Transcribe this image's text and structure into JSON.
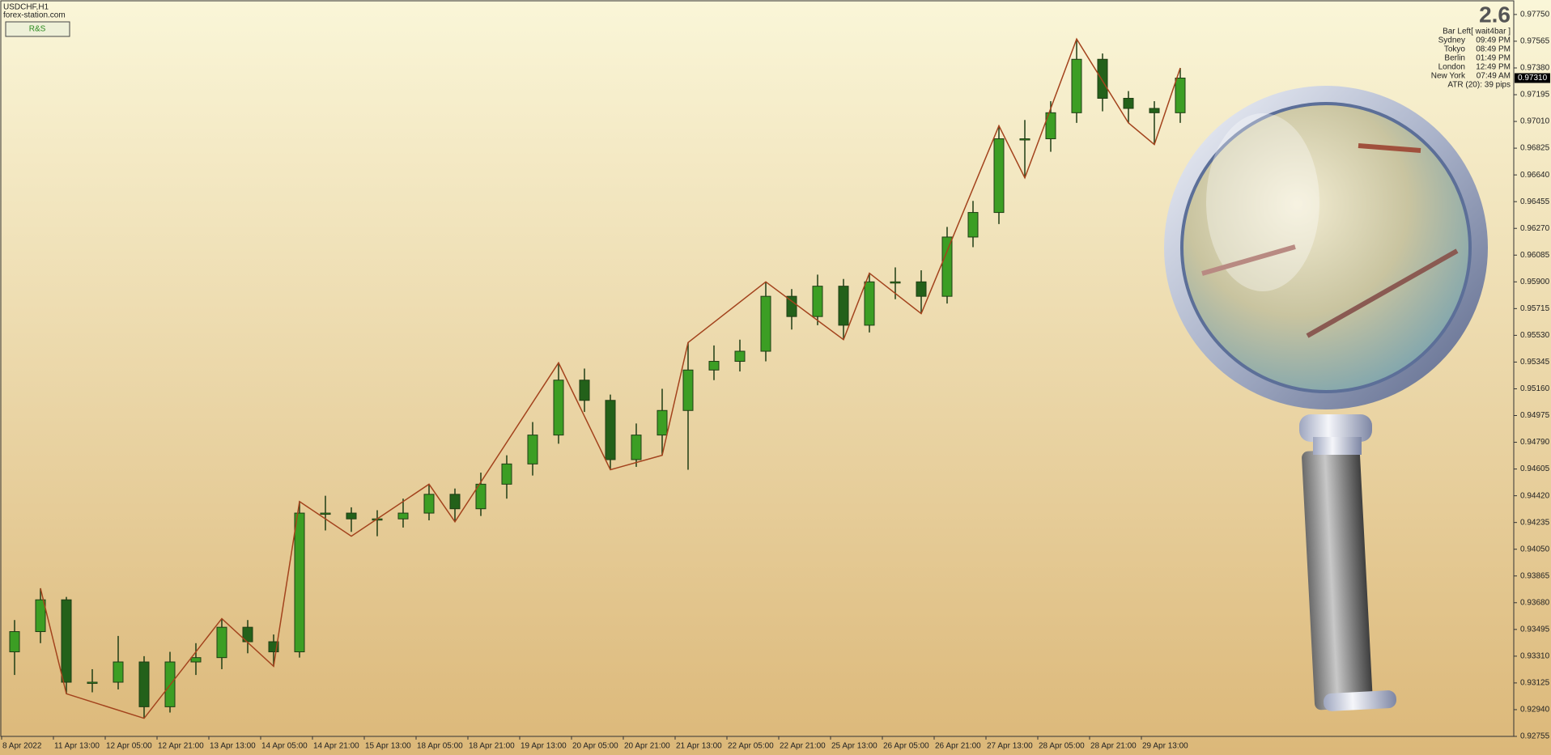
{
  "chart_data": {
    "type": "candlestick",
    "symbol": "USDCHF,H1",
    "site": "forex-station.com",
    "button": "R&S",
    "big_value": "2.6",
    "bar_left": "Bar Left[ wait4bar ]",
    "sessions": [
      {
        "city": "Sydney",
        "time": "09:49 PM"
      },
      {
        "city": "Tokyo",
        "time": "08:49 PM"
      },
      {
        "city": "Berlin",
        "time": "01:49 PM"
      },
      {
        "city": "London",
        "time": "12:49 PM"
      },
      {
        "city": "New York",
        "time": "07:49 AM"
      }
    ],
    "atr": "ATR (20): 39 pips",
    "current_price": {
      "value": 0.9731,
      "label": "0.97310"
    },
    "up_color": "#3c9e24",
    "down_color": "#23611a",
    "wick_color": "#1f3d14",
    "zigzag_color": "#a3431d",
    "categories": [
      "8 Apr 2022",
      "11 Apr 13:00",
      "12 Apr 05:00",
      "12 Apr 21:00",
      "13 Apr 13:00",
      "14 Apr 05:00",
      "14 Apr 21:00",
      "15 Apr 13:00",
      "18 Apr 05:00",
      "18 Apr 21:00",
      "19 Apr 13:00",
      "20 Apr 05:00",
      "20 Apr 21:00",
      "21 Apr 13:00",
      "22 Apr 05:00",
      "22 Apr 21:00",
      "25 Apr 13:00",
      "26 Apr 05:00",
      "26 Apr 21:00",
      "27 Apr 13:00",
      "28 Apr 05:00",
      "28 Apr 21:00",
      "29 Apr 13:00"
    ],
    "open": [
      0.9334,
      0.9348,
      0.937,
      0.9313,
      0.9313,
      0.9327,
      0.9296,
      0.9327,
      0.933,
      0.9351,
      0.9341,
      0.9334,
      0.943,
      0.943,
      0.9426,
      0.9426,
      0.943,
      0.9443,
      0.9433,
      0.945,
      0.9464,
      0.9484,
      0.9522,
      0.9508,
      0.9467,
      0.9484,
      0.9501,
      0.9529,
      0.9535,
      0.9542,
      0.958,
      0.9566,
      0.9587,
      0.956,
      0.959,
      0.959,
      0.958,
      0.9621,
      0.9638,
      0.9689,
      0.9689,
      0.9707,
      0.9744,
      0.9717,
      0.971,
      0.9707
    ],
    "high": [
      0.9356,
      0.9378,
      0.9372,
      0.9322,
      0.9345,
      0.9331,
      0.9334,
      0.934,
      0.9357,
      0.9356,
      0.9346,
      0.9438,
      0.9442,
      0.9434,
      0.9432,
      0.944,
      0.945,
      0.9447,
      0.9458,
      0.947,
      0.9493,
      0.9534,
      0.953,
      0.9512,
      0.9492,
      0.9516,
      0.9548,
      0.9546,
      0.955,
      0.959,
      0.9585,
      0.9595,
      0.9592,
      0.9596,
      0.96,
      0.9598,
      0.9628,
      0.9646,
      0.9698,
      0.9702,
      0.9715,
      0.9758,
      0.9748,
      0.9722,
      0.9715,
      0.9738
    ],
    "low": [
      0.9318,
      0.934,
      0.9305,
      0.9306,
      0.9308,
      0.9288,
      0.9292,
      0.9318,
      0.9322,
      0.9333,
      0.9324,
      0.933,
      0.9418,
      0.9417,
      0.9414,
      0.942,
      0.9425,
      0.9424,
      0.9428,
      0.944,
      0.9456,
      0.9478,
      0.95,
      0.946,
      0.9462,
      0.947,
      0.946,
      0.9522,
      0.9528,
      0.9535,
      0.9557,
      0.956,
      0.955,
      0.9555,
      0.9578,
      0.9568,
      0.9575,
      0.9614,
      0.963,
      0.9662,
      0.968,
      0.97,
      0.9708,
      0.97,
      0.9685,
      0.97
    ],
    "close": [
      0.9348,
      0.937,
      0.9313,
      0.9313,
      0.9327,
      0.9296,
      0.9327,
      0.933,
      0.9351,
      0.9341,
      0.9334,
      0.943,
      0.943,
      0.9426,
      0.9426,
      0.943,
      0.9443,
      0.9433,
      0.945,
      0.9464,
      0.9484,
      0.9522,
      0.9508,
      0.9467,
      0.9484,
      0.9501,
      0.9529,
      0.9535,
      0.9542,
      0.958,
      0.9566,
      0.9587,
      0.956,
      0.959,
      0.959,
      0.958,
      0.9621,
      0.9638,
      0.9689,
      0.9689,
      0.9707,
      0.9744,
      0.9717,
      0.971,
      0.9707,
      0.9731
    ],
    "zigzag": {
      "x": [
        1,
        2,
        5,
        8,
        10,
        11,
        13,
        16,
        17,
        21,
        23,
        25,
        26,
        29,
        32,
        33,
        35,
        38,
        39,
        41,
        43,
        44,
        45
      ],
      "values": [
        0.9378,
        0.9305,
        0.9288,
        0.9357,
        0.9324,
        0.9438,
        0.9414,
        0.945,
        0.9424,
        0.9534,
        0.946,
        0.947,
        0.9548,
        0.959,
        0.955,
        0.9596,
        0.9568,
        0.9698,
        0.9662,
        0.9758,
        0.97,
        0.9685,
        0.9738
      ]
    },
    "ylim": [
      0.92755,
      0.97839
    ],
    "yticks": [
      {
        "value": 0.9775,
        "label": "0.97750"
      },
      {
        "value": 0.97565,
        "label": "0.97565"
      },
      {
        "value": 0.9738,
        "label": "0.97380"
      },
      {
        "value": 0.97195,
        "label": "0.97195"
      },
      {
        "value": 0.9701,
        "label": "0.97010"
      },
      {
        "value": 0.96825,
        "label": "0.96825"
      },
      {
        "value": 0.9664,
        "label": "0.96640"
      },
      {
        "value": 0.96455,
        "label": "0.96455"
      },
      {
        "value": 0.9627,
        "label": "0.96270"
      },
      {
        "value": 0.96085,
        "label": "0.96085"
      },
      {
        "value": 0.959,
        "label": "0.95900"
      },
      {
        "value": 0.95715,
        "label": "0.95715"
      },
      {
        "value": 0.9553,
        "label": "0.95530"
      },
      {
        "value": 0.95345,
        "label": "0.95345"
      },
      {
        "value": 0.9516,
        "label": "0.95160"
      },
      {
        "value": 0.94975,
        "label": "0.94975"
      },
      {
        "value": 0.9479,
        "label": "0.94790"
      },
      {
        "value": 0.94605,
        "label": "0.94605"
      },
      {
        "value": 0.9442,
        "label": "0.94420"
      },
      {
        "value": 0.94235,
        "label": "0.94235"
      },
      {
        "value": 0.9405,
        "label": "0.94050"
      },
      {
        "value": 0.93865,
        "label": "0.93865"
      },
      {
        "value": 0.9368,
        "label": "0.93680"
      },
      {
        "value": 0.93495,
        "label": "0.93495"
      },
      {
        "value": 0.9331,
        "label": "0.93310"
      },
      {
        "value": 0.93125,
        "label": "0.93125"
      },
      {
        "value": 0.9294,
        "label": "0.92940"
      },
      {
        "value": 0.92755,
        "label": "0.92755"
      }
    ]
  }
}
